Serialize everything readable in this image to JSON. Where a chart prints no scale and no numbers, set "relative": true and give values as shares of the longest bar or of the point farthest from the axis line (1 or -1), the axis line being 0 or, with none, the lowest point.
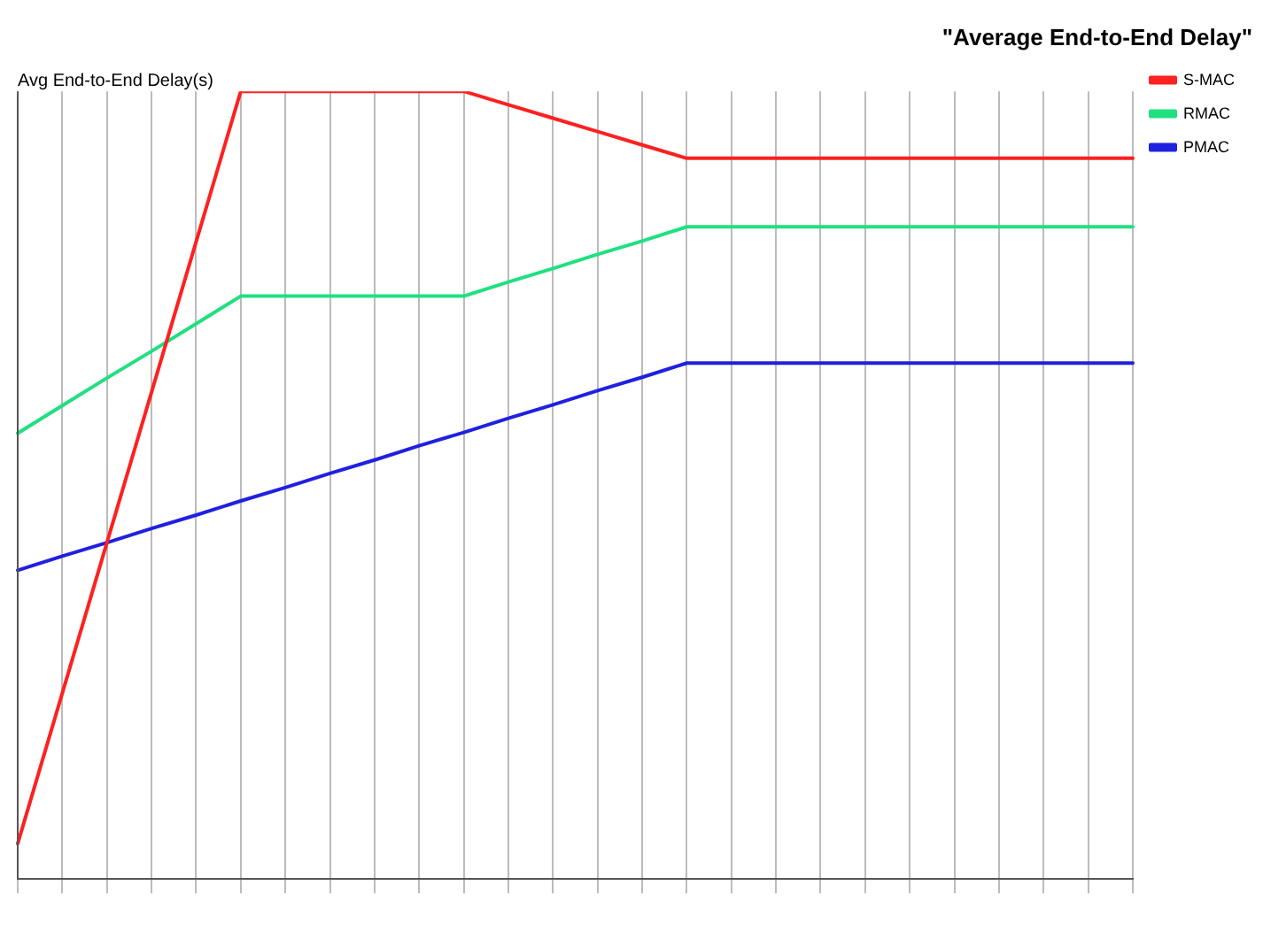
{
  "chart_data": {
    "type": "line",
    "title": "\"Average End-to-End Delay\"",
    "ylabel": "Avg End-to-End Delay(s)",
    "relative": true,
    "grid": "x",
    "legend": "top right",
    "marker": "none",
    "line_style": "solid",
    "categories": [
      null,
      null,
      null,
      null,
      null,
      null,
      null,
      null,
      null,
      null,
      null,
      null,
      null,
      null,
      null,
      null,
      null,
      null,
      null,
      null,
      null,
      null,
      null,
      null,
      null,
      null
    ],
    "series": [
      {
        "name": "S-MAC",
        "color": "#ff2020",
        "values": [
          0.045,
          0.236,
          0.427,
          0.618,
          0.809,
          1,
          1,
          1,
          1,
          1,
          1,
          0.983,
          0.966,
          0.949,
          0.932,
          0.915,
          0.915,
          0.915,
          0.915,
          0.915,
          0.915,
          0.915,
          0.915,
          0.915,
          0.915,
          0.915
        ]
      },
      {
        "name": "RMAC",
        "color": "#20e080",
        "values": [
          0.566,
          0.601,
          0.636,
          0.67,
          0.705,
          0.74,
          0.74,
          0.74,
          0.74,
          0.74,
          0.74,
          0.758,
          0.775,
          0.793,
          0.81,
          0.828,
          0.828,
          0.828,
          0.828,
          0.828,
          0.828,
          0.828,
          0.828,
          0.828,
          0.828,
          0.828
        ]
      },
      {
        "name": "PMAC",
        "color": "#2020e0",
        "values": [
          0.392,
          0.41,
          0.427,
          0.445,
          0.462,
          0.48,
          0.497,
          0.515,
          0.532,
          0.55,
          0.567,
          0.585,
          0.602,
          0.62,
          0.637,
          0.655,
          0.655,
          0.655,
          0.655,
          0.655,
          0.655,
          0.655,
          0.655,
          0.655,
          0.655,
          0.655
        ]
      }
    ]
  }
}
